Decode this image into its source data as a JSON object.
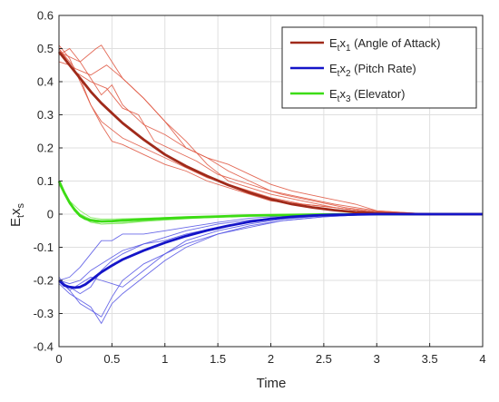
{
  "chart_data": {
    "type": "line",
    "xlabel": "Time",
    "ylabel": {
      "main": "E",
      "sub1": "t",
      "mid": "x",
      "sub2": "s"
    },
    "xlim": [
      0,
      4
    ],
    "ylim": [
      -0.4,
      0.6
    ],
    "x_ticks": [
      "0",
      "0.5",
      "1",
      "1.5",
      "2",
      "2.5",
      "3",
      "3.5",
      "4"
    ],
    "y_ticks": [
      "-0.4",
      "-0.3",
      "-0.2",
      "-0.1",
      "0",
      "0.1",
      "0.2",
      "0.3",
      "0.4",
      "0.5",
      "0.6"
    ],
    "grid": true,
    "legend_position": "top-right",
    "series": [
      {
        "legend": {
          "main": "E",
          "sub1": "t",
          "mid": "x",
          "sub2": "1",
          "rest": " (Angle of Attack)"
        },
        "color": "#a02a1a",
        "sample_color": "#e05a45",
        "mean": {
          "x": [
            0,
            0.1,
            0.2,
            0.3,
            0.4,
            0.5,
            0.6,
            0.8,
            1.0,
            1.2,
            1.4,
            1.6,
            1.8,
            2.0,
            2.2,
            2.4,
            2.6,
            2.8,
            3.0,
            3.2,
            3.5,
            4.0
          ],
          "y": [
            0.49,
            0.45,
            0.41,
            0.37,
            0.335,
            0.305,
            0.275,
            0.225,
            0.18,
            0.145,
            0.115,
            0.088,
            0.065,
            0.045,
            0.03,
            0.02,
            0.012,
            0.006,
            0.003,
            0.001,
            0.0,
            0.0
          ]
        },
        "samples": [
          {
            "x": [
              0,
              0.15,
              0.3,
              0.45,
              0.6,
              0.8,
              1.0,
              1.2,
              1.4,
              1.6,
              1.8,
              2.0,
              2.3,
              2.6,
              3.0,
              3.5,
              4.0
            ],
            "y": [
              0.5,
              0.44,
              0.42,
              0.45,
              0.41,
              0.35,
              0.28,
              0.22,
              0.15,
              0.1,
              0.08,
              0.06,
              0.04,
              0.02,
              0.005,
              0.0,
              0.0
            ]
          },
          {
            "x": [
              0,
              0.1,
              0.2,
              0.3,
              0.4,
              0.5,
              0.6,
              0.8,
              1.0,
              1.2,
              1.4,
              1.6,
              1.8,
              2.0,
              2.3,
              2.6,
              3.0,
              3.5,
              4.0
            ],
            "y": [
              0.48,
              0.5,
              0.46,
              0.41,
              0.36,
              0.39,
              0.33,
              0.27,
              0.24,
              0.2,
              0.17,
              0.13,
              0.1,
              0.07,
              0.05,
              0.03,
              0.01,
              0.0,
              0.0
            ]
          },
          {
            "x": [
              0,
              0.1,
              0.2,
              0.3,
              0.4,
              0.6,
              0.8,
              1.0,
              1.2,
              1.4,
              1.6,
              1.8,
              2.0,
              2.3,
              2.6,
              3.0,
              3.5,
              4.0
            ],
            "y": [
              0.46,
              0.45,
              0.41,
              0.33,
              0.28,
              0.23,
              0.2,
              0.17,
              0.14,
              0.11,
              0.09,
              0.07,
              0.05,
              0.03,
              0.02,
              0.005,
              0.0,
              0.0
            ]
          },
          {
            "x": [
              0,
              0.1,
              0.2,
              0.3,
              0.4,
              0.5,
              0.6,
              0.8,
              1.0,
              1.2,
              1.4,
              1.6,
              1.8,
              2.0,
              2.3,
              2.6,
              3.0,
              3.5,
              4.0
            ],
            "y": [
              0.51,
              0.47,
              0.4,
              0.33,
              0.27,
              0.22,
              0.21,
              0.18,
              0.15,
              0.13,
              0.1,
              0.08,
              0.06,
              0.04,
              0.03,
              0.02,
              0.005,
              0.0,
              0.0
            ]
          },
          {
            "x": [
              0,
              0.2,
              0.35,
              0.4,
              0.5,
              0.6,
              0.8,
              1.0,
              1.2,
              1.4,
              1.6,
              1.8,
              2.0,
              2.2,
              2.5,
              2.8,
              3.0,
              3.5,
              4.0
            ],
            "y": [
              0.49,
              0.46,
              0.5,
              0.51,
              0.46,
              0.41,
              0.35,
              0.28,
              0.2,
              0.17,
              0.15,
              0.12,
              0.09,
              0.07,
              0.05,
              0.03,
              0.01,
              0.0,
              0.0
            ]
          },
          {
            "x": [
              0,
              0.15,
              0.3,
              0.45,
              0.6,
              0.75,
              0.9,
              1.1,
              1.3,
              1.5,
              1.7,
              1.9,
              2.1,
              2.4,
              2.7,
              3.0,
              3.5,
              4.0
            ],
            "y": [
              0.5,
              0.43,
              0.4,
              0.38,
              0.32,
              0.3,
              0.22,
              0.19,
              0.16,
              0.12,
              0.1,
              0.08,
              0.06,
              0.04,
              0.02,
              0.008,
              0.0,
              0.0
            ]
          }
        ]
      },
      {
        "legend": {
          "main": "E",
          "sub1": "t",
          "mid": "x",
          "sub2": "2",
          "rest": " (Pitch Rate)"
        },
        "color": "#1414c8",
        "sample_color": "#5a5ae6",
        "mean": {
          "x": [
            0,
            0.05,
            0.1,
            0.15,
            0.2,
            0.25,
            0.3,
            0.4,
            0.5,
            0.6,
            0.8,
            1.0,
            1.2,
            1.4,
            1.6,
            1.8,
            2.0,
            2.2,
            2.4,
            2.6,
            2.8,
            3.0,
            3.5,
            4.0
          ],
          "y": [
            -0.2,
            -0.215,
            -0.22,
            -0.222,
            -0.22,
            -0.212,
            -0.2,
            -0.175,
            -0.155,
            -0.137,
            -0.11,
            -0.086,
            -0.066,
            -0.049,
            -0.035,
            -0.023,
            -0.014,
            -0.008,
            -0.004,
            -0.002,
            -0.001,
            0.0,
            0.0,
            0.0
          ]
        },
        "samples": [
          {
            "x": [
              0,
              0.1,
              0.2,
              0.3,
              0.4,
              0.5,
              0.6,
              0.8,
              1.0,
              1.2,
              1.5,
              1.8,
              2.1,
              2.5,
              3.0,
              3.5,
              4.0
            ],
            "y": [
              -0.19,
              -0.23,
              -0.27,
              -0.29,
              -0.31,
              -0.25,
              -0.2,
              -0.15,
              -0.12,
              -0.08,
              -0.05,
              -0.03,
              -0.015,
              -0.005,
              0.0,
              0.0,
              0.0
            ]
          },
          {
            "x": [
              0,
              0.1,
              0.2,
              0.3,
              0.4,
              0.5,
              0.6,
              0.8,
              1.0,
              1.2,
              1.5,
              1.8,
              2.1,
              2.5,
              3.0,
              3.5,
              4.0
            ],
            "y": [
              -0.21,
              -0.24,
              -0.26,
              -0.28,
              -0.33,
              -0.27,
              -0.24,
              -0.19,
              -0.14,
              -0.1,
              -0.06,
              -0.035,
              -0.02,
              -0.008,
              0.0,
              0.0,
              0.0
            ]
          },
          {
            "x": [
              0,
              0.1,
              0.2,
              0.3,
              0.4,
              0.5,
              0.6,
              0.8,
              1.0,
              1.2,
              1.5,
              1.8,
              2.1,
              2.5,
              3.0,
              3.5,
              4.0
            ],
            "y": [
              -0.2,
              -0.19,
              -0.16,
              -0.12,
              -0.08,
              -0.08,
              -0.06,
              -0.06,
              -0.05,
              -0.04,
              -0.025,
              -0.012,
              -0.006,
              -0.002,
              0.0,
              0.0,
              0.0
            ]
          },
          {
            "x": [
              0,
              0.1,
              0.2,
              0.3,
              0.4,
              0.5,
              0.6,
              0.8,
              1.0,
              1.2,
              1.5,
              1.8,
              2.1,
              2.5,
              3.0,
              3.5,
              4.0
            ],
            "y": [
              -0.2,
              -0.22,
              -0.24,
              -0.22,
              -0.17,
              -0.14,
              -0.12,
              -0.09,
              -0.07,
              -0.05,
              -0.03,
              -0.018,
              -0.01,
              -0.004,
              0.0,
              0.0,
              0.0
            ]
          },
          {
            "x": [
              0,
              0.1,
              0.2,
              0.3,
              0.4,
              0.5,
              0.6,
              0.8,
              1.0,
              1.2,
              1.5,
              1.8,
              2.1,
              2.5,
              3.0,
              3.5,
              4.0
            ],
            "y": [
              -0.2,
              -0.21,
              -0.2,
              -0.17,
              -0.15,
              -0.13,
              -0.11,
              -0.09,
              -0.08,
              -0.06,
              -0.04,
              -0.025,
              -0.012,
              -0.005,
              0.0,
              0.0,
              0.0
            ]
          },
          {
            "x": [
              0,
              0.1,
              0.2,
              0.3,
              0.4,
              0.5,
              0.6,
              0.8,
              1.0,
              1.2,
              1.5,
              1.8,
              2.1,
              2.5,
              3.0,
              3.5,
              4.0
            ],
            "y": [
              -0.2,
              -0.23,
              -0.21,
              -0.19,
              -0.2,
              -0.21,
              -0.22,
              -0.17,
              -0.12,
              -0.09,
              -0.06,
              -0.04,
              -0.02,
              -0.008,
              0.0,
              0.0,
              0.0
            ]
          }
        ]
      },
      {
        "legend": {
          "main": "E",
          "sub1": "t",
          "mid": "x",
          "sub2": "3",
          "rest": " (Elevator)"
        },
        "color": "#3cdc14",
        "sample_color": "#7ce85a",
        "mean": {
          "x": [
            0,
            0.05,
            0.1,
            0.15,
            0.2,
            0.25,
            0.3,
            0.4,
            0.5,
            0.6,
            0.8,
            1.0,
            1.2,
            1.5,
            1.8,
            2.0,
            2.5,
            3.0,
            3.5,
            4.0
          ],
          "y": [
            0.1,
            0.065,
            0.035,
            0.012,
            -0.005,
            -0.014,
            -0.019,
            -0.022,
            -0.021,
            -0.019,
            -0.016,
            -0.013,
            -0.01,
            -0.007,
            -0.004,
            -0.003,
            -0.001,
            0.0,
            0.0,
            0.0
          ]
        },
        "samples": [
          {
            "x": [
              0,
              0.05,
              0.1,
              0.2,
              0.3,
              0.4,
              0.6,
              0.8,
              1.0,
              1.3,
              1.6,
              2.0,
              2.5,
              3.0,
              4.0
            ],
            "y": [
              0.1,
              0.06,
              0.03,
              0.0,
              -0.02,
              -0.03,
              -0.028,
              -0.022,
              -0.018,
              -0.012,
              -0.008,
              -0.004,
              -0.001,
              0.0,
              0.0
            ]
          },
          {
            "x": [
              0,
              0.05,
              0.1,
              0.2,
              0.3,
              0.4,
              0.6,
              0.8,
              1.0,
              1.3,
              1.6,
              2.0,
              2.5,
              3.0,
              4.0
            ],
            "y": [
              0.1,
              0.07,
              0.04,
              0.01,
              -0.01,
              -0.015,
              -0.014,
              -0.012,
              -0.01,
              -0.007,
              -0.005,
              -0.003,
              -0.001,
              0.0,
              0.0
            ]
          },
          {
            "x": [
              0,
              0.05,
              0.1,
              0.2,
              0.3,
              0.4,
              0.6,
              0.8,
              1.0,
              1.3,
              1.6,
              2.0,
              2.5,
              3.0,
              4.0
            ],
            "y": [
              0.09,
              0.06,
              0.03,
              -0.005,
              -0.025,
              -0.03,
              -0.026,
              -0.02,
              -0.015,
              -0.01,
              -0.006,
              -0.003,
              -0.001,
              0.0,
              0.0
            ]
          },
          {
            "x": [
              0,
              0.05,
              0.1,
              0.2,
              0.3,
              0.4,
              0.6,
              0.8,
              1.0,
              1.3,
              1.6,
              2.0,
              2.5,
              3.0,
              4.0
            ],
            "y": [
              0.1,
              0.065,
              0.035,
              0.0,
              -0.015,
              -0.02,
              -0.022,
              -0.017,
              -0.014,
              -0.009,
              -0.006,
              -0.003,
              -0.001,
              0.0,
              0.0
            ]
          }
        ]
      }
    ]
  }
}
